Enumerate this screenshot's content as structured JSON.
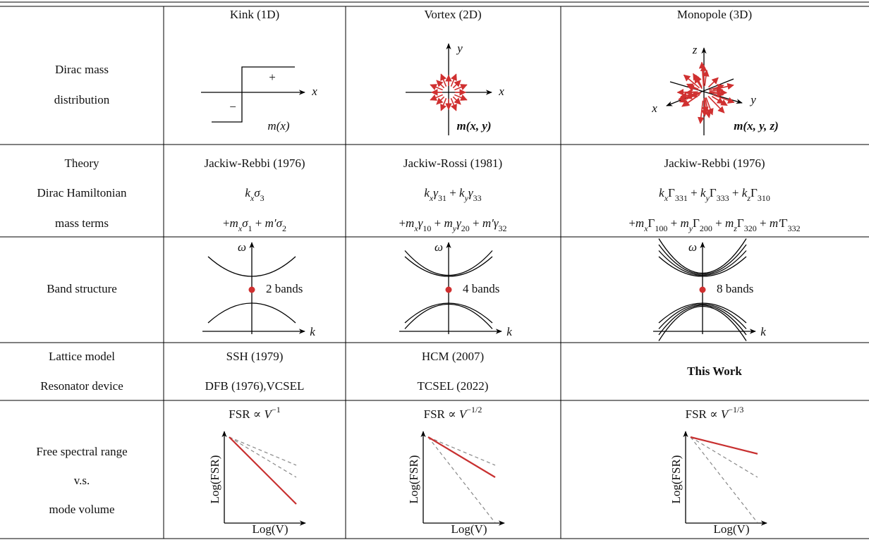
{
  "table": {
    "header": [
      "Kink (1D)",
      "Vortex (2D)",
      "Monopole (3D)"
    ],
    "row_labels": {
      "mass": [
        "Dirac mass",
        "distribution"
      ],
      "theory": [
        "Theory",
        "Dirac Hamiltonian",
        "mass terms"
      ],
      "band": [
        "Band structure"
      ],
      "lattice": [
        "Lattice model",
        "Resonator device"
      ],
      "fsr": [
        "Free spectral range",
        "v.s.",
        "mode volume"
      ]
    },
    "diagram_labels": {
      "omega": "ω",
      "k": "k",
      "log_fsr": "Log(FSR)",
      "log_v": "Log(V)"
    },
    "columns": [
      {
        "mass_labels": {
          "plus": "+",
          "minus": "−",
          "x": "x",
          "m": "m(x)"
        },
        "theory": "Jackiw-Rebbi (1976)",
        "hamiltonian": [
          [
            "k",
            "x"
          ],
          [
            "σ",
            "3"
          ]
        ],
        "mass_terms": [
          "+",
          [
            "m",
            "x"
          ],
          [
            "σ",
            "1"
          ],
          " + ",
          "m′",
          [
            "σ",
            "2"
          ]
        ],
        "bands": "2 bands",
        "lattice": [
          "SSH (1979)",
          "DFB (1976),VCSEL"
        ],
        "fsr_title": {
          "text": "FSR ∝ ",
          "var": "V",
          "sup": "−1"
        }
      },
      {
        "mass_labels": {
          "x": "x",
          "y": "y",
          "m": "m(x, y)"
        },
        "theory": "Jackiw-Rossi (1981)",
        "hamiltonian": [
          [
            "k",
            "x"
          ],
          [
            "γ",
            "31"
          ],
          " + ",
          [
            "k",
            "y"
          ],
          [
            "γ",
            "33"
          ]
        ],
        "mass_terms": [
          "+",
          [
            "m",
            "x"
          ],
          [
            "γ",
            "10"
          ],
          " + ",
          [
            "m",
            "y"
          ],
          [
            "γ",
            "20"
          ],
          " + ",
          "m′",
          [
            "γ",
            "32"
          ]
        ],
        "bands": "4 bands",
        "lattice": [
          "HCM (2007)",
          "TCSEL (2022)"
        ],
        "fsr_title": {
          "text": "FSR ∝ ",
          "var": "V",
          "sup": "−1/2"
        }
      },
      {
        "mass_labels": {
          "x": "x",
          "y": "y",
          "z": "z",
          "m": "m(x, y, z)"
        },
        "theory": "Jackiw-Rebbi (1976)",
        "hamiltonian": [
          [
            "k",
            "x"
          ],
          [
            "Γ",
            "331"
          ],
          " + ",
          [
            "k",
            "y"
          ],
          [
            "Γ",
            "333"
          ],
          " + ",
          [
            "k",
            "z"
          ],
          [
            "Γ",
            "310"
          ]
        ],
        "mass_terms": [
          "+",
          [
            "m",
            "x"
          ],
          [
            "Γ",
            "100"
          ],
          " + ",
          [
            "m",
            "y"
          ],
          [
            "Γ",
            "200"
          ],
          " + ",
          [
            "m",
            "z"
          ],
          [
            "Γ",
            "320"
          ],
          " + ",
          "m′",
          [
            "Γ",
            "332"
          ]
        ],
        "bands": "8 bands",
        "lattice": [
          "This Work"
        ],
        "fsr_title": {
          "text": "FSR ∝ ",
          "var": "V",
          "sup": "−1/3"
        }
      }
    ]
  }
}
